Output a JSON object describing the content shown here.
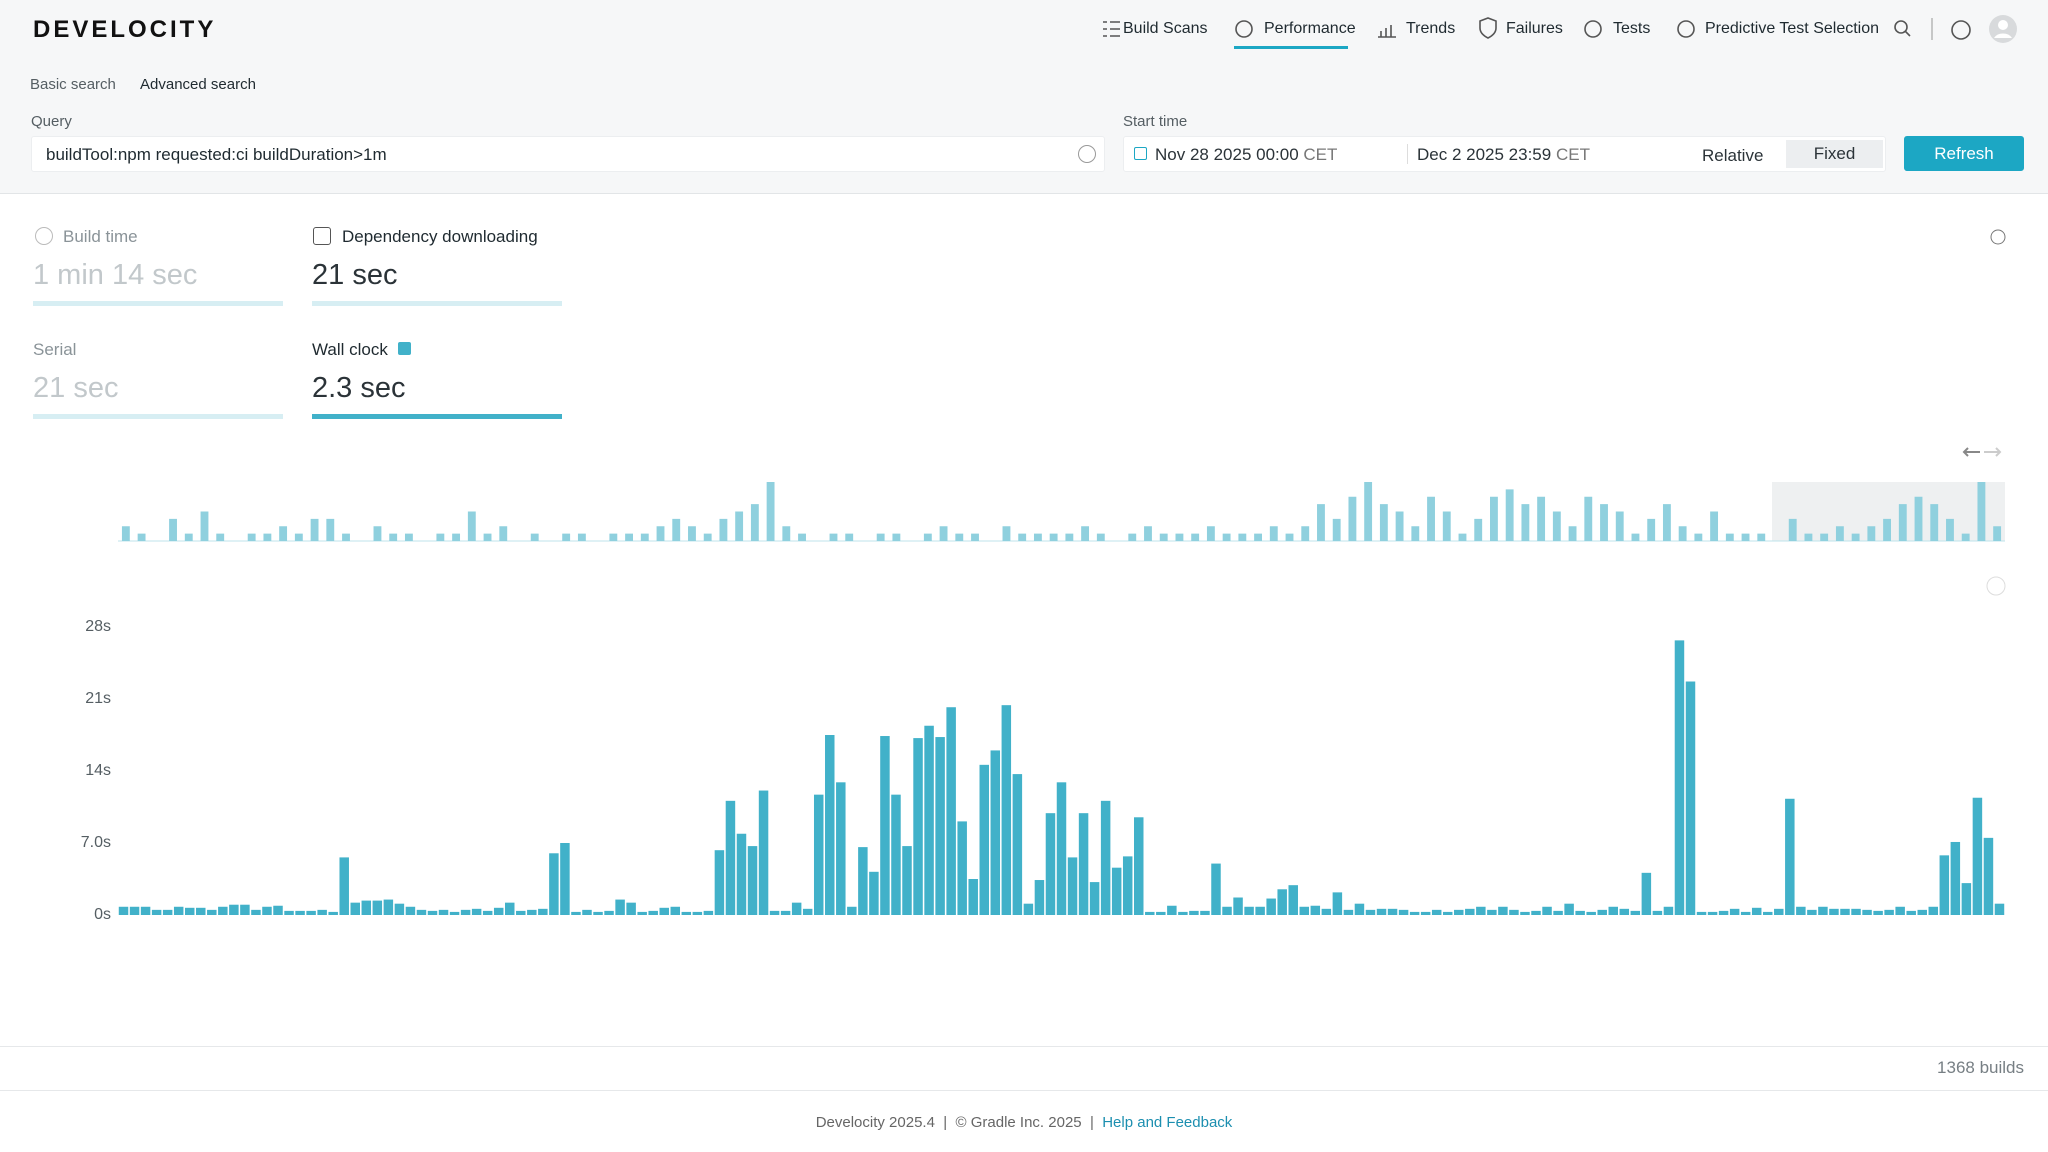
{
  "nav": {
    "logo": "DEVELOCITY",
    "items": [
      "Build Scans",
      "Performance",
      "Trends",
      "Failures",
      "Tests",
      "Predictive Test Selection"
    ]
  },
  "search": {
    "tabs": [
      "Basic search",
      "Advanced search"
    ],
    "query_label": "Query",
    "query": "buildTool:npm requested:ci buildDuration>1m",
    "start_time_label": "Start time",
    "from_date": "Nov 28 2025 00:00",
    "from_tz": "CET",
    "to_date": "Dec 2 2025 23:59",
    "to_tz": "CET",
    "modes": [
      "Relative",
      "Fixed"
    ],
    "refresh": "Refresh"
  },
  "metrics": [
    {
      "label": "Build time",
      "value": "1 min 14 sec"
    },
    {
      "label": "Dependency downloading",
      "value": "21 sec"
    },
    {
      "label": "Serial",
      "value": "21 sec"
    },
    {
      "label": "Wall clock",
      "value": "2.3 sec"
    }
  ],
  "chart_data": [
    {
      "type": "bar",
      "color": "#8fd0de",
      "values": [
        2,
        1,
        0,
        3,
        1,
        4,
        1,
        0,
        1,
        1,
        2,
        1,
        3,
        3,
        1,
        0,
        2,
        1,
        1,
        0,
        1,
        1,
        4,
        1,
        2,
        0,
        1,
        0,
        1,
        1,
        0,
        1,
        1,
        1,
        2,
        3,
        2,
        1,
        3,
        4,
        5,
        8,
        2,
        1,
        0,
        1,
        1,
        0,
        1,
        1,
        0,
        1,
        2,
        1,
        1,
        0,
        2,
        1,
        1,
        1,
        1,
        2,
        1,
        0,
        1,
        2,
        1,
        1,
        1,
        2,
        1,
        1,
        1,
        2,
        1,
        2,
        5,
        3,
        6,
        8,
        5,
        4,
        2,
        6,
        4,
        1,
        3,
        6,
        7,
        5,
        6,
        4,
        2,
        6,
        5,
        4,
        1,
        3,
        5,
        2,
        1,
        4,
        1,
        1,
        1,
        0,
        3,
        1,
        1,
        2,
        1,
        2,
        3,
        5,
        6,
        5,
        3,
        1,
        8,
        2
      ]
    },
    {
      "type": "bar",
      "color": "#41b1c9",
      "ylim": [
        0,
        28
      ],
      "grid": false,
      "yticks": [
        {
          "value": 0,
          "label": "0s"
        },
        {
          "value": 7,
          "label": "7.0s"
        },
        {
          "value": 14,
          "label": "14s"
        },
        {
          "value": 21,
          "label": "21s"
        },
        {
          "value": 28,
          "label": "28s"
        }
      ],
      "values": [
        0.8,
        0.8,
        0.8,
        0.5,
        0.5,
        0.8,
        0.7,
        0.7,
        0.5,
        0.8,
        1,
        1,
        0.5,
        0.8,
        0.9,
        0.4,
        0.4,
        0.4,
        0.5,
        0.3,
        5.6,
        1.2,
        1.4,
        1.4,
        1.5,
        1.1,
        0.8,
        0.5,
        0.4,
        0.5,
        0.3,
        0.5,
        0.6,
        0.4,
        0.7,
        1.2,
        0.4,
        0.5,
        0.6,
        6,
        7,
        0.3,
        0.5,
        0.3,
        0.4,
        1.5,
        1.2,
        0.3,
        0.4,
        0.7,
        0.8,
        0.3,
        0.3,
        0.4,
        6.3,
        11.1,
        7.9,
        6.7,
        12.1,
        0.4,
        0.4,
        1.2,
        0.6,
        11.7,
        17.5,
        12.9,
        0.8,
        6.6,
        4.2,
        17.4,
        11.7,
        6.7,
        17.2,
        18.4,
        17.3,
        20.2,
        9.1,
        3.5,
        14.6,
        16,
        20.4,
        13.7,
        1.1,
        3.4,
        9.9,
        12.9,
        5.6,
        9.9,
        3.2,
        11.1,
        4.6,
        5.7,
        9.5,
        0.3,
        0.3,
        0.9,
        0.3,
        0.4,
        0.4,
        5,
        0.8,
        1.7,
        0.8,
        0.8,
        1.6,
        2.5,
        2.9,
        0.8,
        0.9,
        0.6,
        2.2,
        0.5,
        1.1,
        0.5,
        0.6,
        0.6,
        0.5,
        0.3,
        0.3,
        0.5,
        0.3,
        0.5,
        0.6,
        0.8,
        0.5,
        0.8,
        0.5,
        0.3,
        0.4,
        0.8,
        0.4,
        1.1,
        0.4,
        0.3,
        0.5,
        0.8,
        0.6,
        0.4,
        4.1,
        0.4,
        0.8,
        26.7,
        22.7,
        0.3,
        0.3,
        0.4,
        0.6,
        0.3,
        0.7,
        0.3,
        0.6,
        11.3,
        0.8,
        0.5,
        0.8,
        0.6,
        0.6,
        0.6,
        0.5,
        0.4,
        0.5,
        0.8,
        0.4,
        0.5,
        0.8,
        5.8,
        7.1,
        3.1,
        11.4,
        7.5,
        1.1
      ]
    }
  ],
  "builds_count": "1368 builds",
  "footer": {
    "version": "Develocity 2025.4",
    "copyright": "© Gradle Inc. 2025",
    "link": "Help and Feedback"
  }
}
